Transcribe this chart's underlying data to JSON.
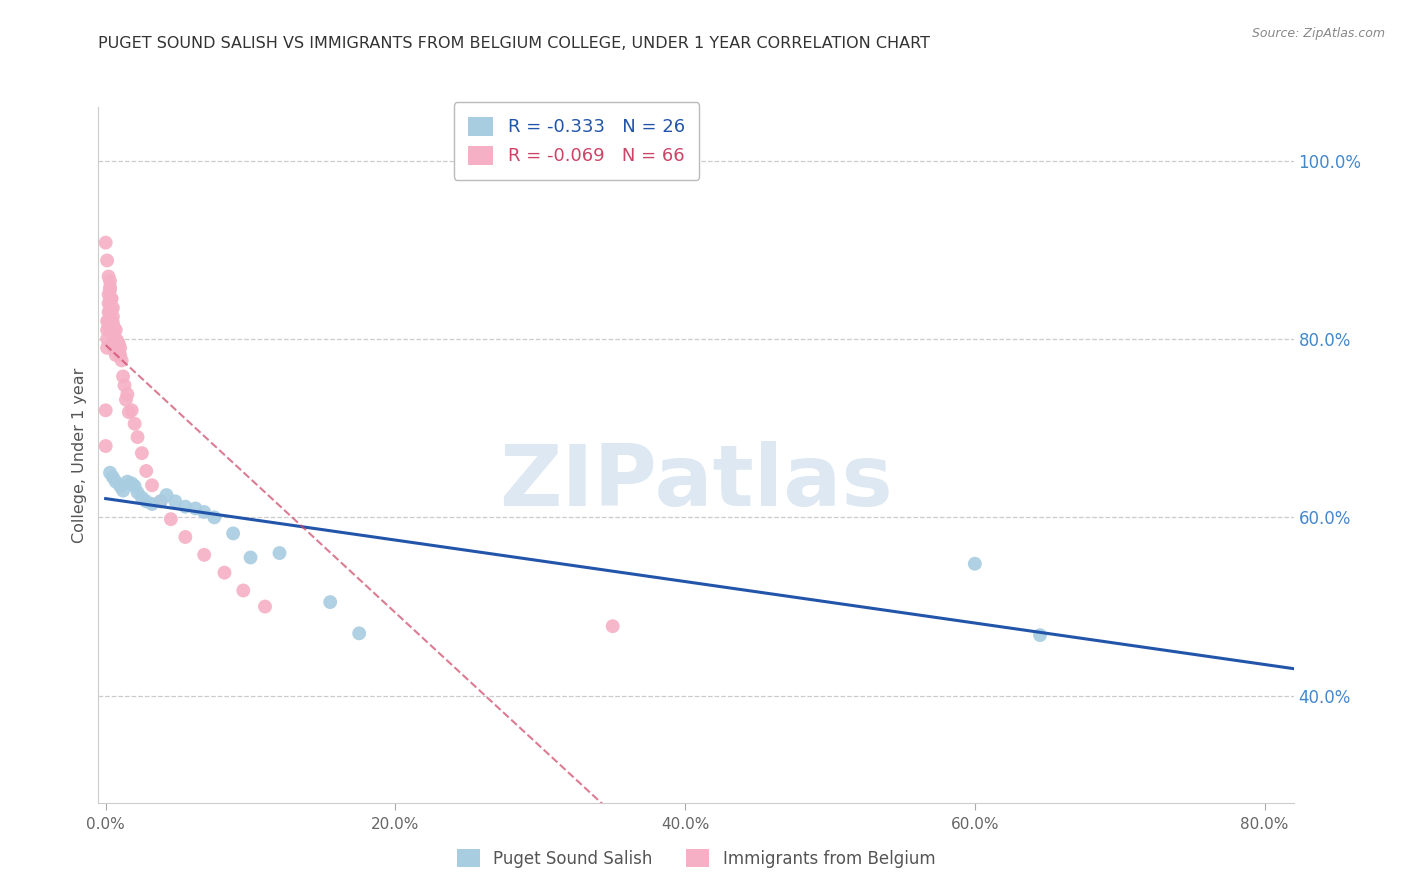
{
  "title": "PUGET SOUND SALISH VS IMMIGRANTS FROM BELGIUM COLLEGE, UNDER 1 YEAR CORRELATION CHART",
  "source": "Source: ZipAtlas.com",
  "ylabel": "College, Under 1 year",
  "xlabel_ticks": [
    0.0,
    0.2,
    0.4,
    0.6,
    0.8
  ],
  "xlabel_labels": [
    "0.0%",
    "20.0%",
    "40.0%",
    "60.0%",
    "80.0%"
  ],
  "ylabel_ticks": [
    0.4,
    0.6,
    0.8,
    1.0
  ],
  "ylabel_labels": [
    "40.0%",
    "60.0%",
    "80.0%",
    "100.0%"
  ],
  "xlim": [
    -0.005,
    0.82
  ],
  "ylim": [
    0.28,
    1.06
  ],
  "blue_label": "Puget Sound Salish",
  "pink_label": "Immigrants from Belgium",
  "blue_R": -0.333,
  "blue_N": 26,
  "pink_R": -0.069,
  "pink_N": 66,
  "blue_color": "#a8cce0",
  "pink_color": "#f5b0c5",
  "blue_line_color": "#2255aa",
  "pink_line_color": "#cc4466",
  "watermark": "ZIPatlas",
  "watermark_color": "#dde8f2",
  "blue_x": [
    0.003,
    0.005,
    0.007,
    0.01,
    0.012,
    0.015,
    0.018,
    0.02,
    0.022,
    0.025,
    0.028,
    0.032,
    0.038,
    0.042,
    0.048,
    0.055,
    0.062,
    0.068,
    0.075,
    0.088,
    0.1,
    0.12,
    0.155,
    0.175,
    0.6,
    0.645
  ],
  "blue_y": [
    0.65,
    0.645,
    0.64,
    0.635,
    0.63,
    0.64,
    0.638,
    0.635,
    0.628,
    0.622,
    0.618,
    0.615,
    0.618,
    0.625,
    0.618,
    0.612,
    0.61,
    0.606,
    0.6,
    0.582,
    0.555,
    0.56,
    0.505,
    0.47,
    0.548,
    0.468
  ],
  "pink_x": [
    0.0,
    0.0,
    0.001,
    0.001,
    0.001,
    0.001,
    0.002,
    0.002,
    0.002,
    0.002,
    0.002,
    0.003,
    0.003,
    0.003,
    0.003,
    0.003,
    0.003,
    0.004,
    0.004,
    0.004,
    0.004,
    0.005,
    0.005,
    0.005,
    0.005,
    0.005,
    0.005,
    0.006,
    0.006,
    0.006,
    0.006,
    0.007,
    0.007,
    0.007,
    0.007,
    0.008,
    0.008,
    0.009,
    0.009,
    0.01,
    0.01,
    0.011,
    0.012,
    0.013,
    0.014,
    0.015,
    0.016,
    0.018,
    0.02,
    0.022,
    0.025,
    0.028,
    0.032,
    0.038,
    0.045,
    0.055,
    0.068,
    0.082,
    0.095,
    0.11,
    0.0,
    0.001,
    0.002,
    0.003,
    0.004,
    0.35
  ],
  "pink_y": [
    0.72,
    0.68,
    0.82,
    0.81,
    0.8,
    0.79,
    0.85,
    0.84,
    0.83,
    0.82,
    0.815,
    0.865,
    0.855,
    0.845,
    0.838,
    0.83,
    0.82,
    0.845,
    0.832,
    0.82,
    0.812,
    0.835,
    0.825,
    0.818,
    0.812,
    0.806,
    0.798,
    0.812,
    0.802,
    0.795,
    0.788,
    0.81,
    0.8,
    0.792,
    0.782,
    0.798,
    0.79,
    0.795,
    0.786,
    0.79,
    0.782,
    0.776,
    0.758,
    0.748,
    0.732,
    0.738,
    0.718,
    0.72,
    0.705,
    0.69,
    0.672,
    0.652,
    0.636,
    0.618,
    0.598,
    0.578,
    0.558,
    0.538,
    0.518,
    0.5,
    0.908,
    0.888,
    0.87,
    0.858,
    0.845,
    0.478
  ]
}
